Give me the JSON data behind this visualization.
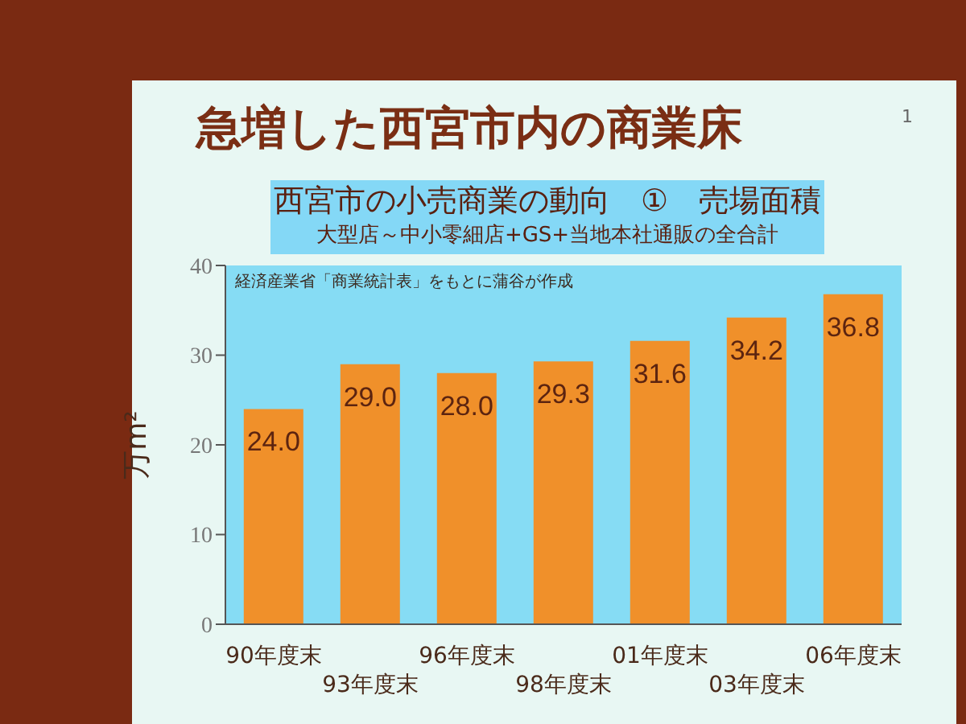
{
  "chart_data": {
    "type": "bar",
    "title": "急増した西宮市内の商業床",
    "subtitle": "西宮市の小売商業の動向　①　売場面積",
    "ylabel": "万m²",
    "annotations": [
      "経済産業省「商業統計表」をもとに蒲谷が作成",
      "1",
      "大型店～中小零細店+GS+当地本社通販の全合計"
    ],
    "categories": [
      "90年度末",
      "93年度末",
      "96年度末",
      "98年度末",
      "01年度末",
      "03年度末",
      "06年度末"
    ],
    "values": [
      24.0,
      29.0,
      28.0,
      29.3,
      31.6,
      34.2,
      36.8
    ],
    "value_labels": [
      "24.0",
      "29.0",
      "28.0",
      "29.3",
      "31.6",
      "34.2",
      "36.8"
    ],
    "color": "#f0902a",
    "ylim": [
      0,
      40
    ],
    "yticks": [
      0,
      10,
      20,
      30,
      40
    ]
  }
}
